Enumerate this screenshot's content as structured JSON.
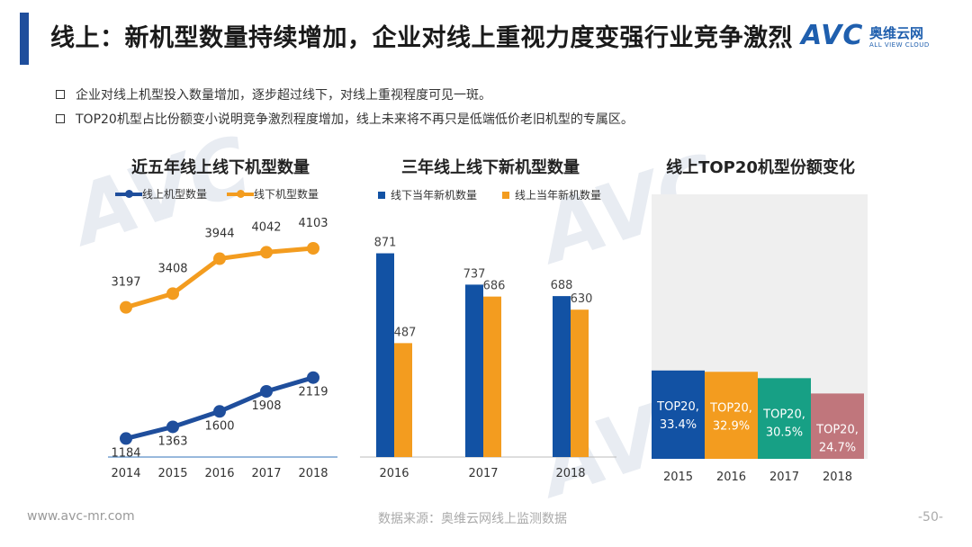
{
  "header": {
    "title": "线上：新机型数量持续增加，企业对线上重视力度变强行业竞争激烈",
    "logo_mark": "AVC",
    "logo_cn": "奥维云网",
    "logo_en": "ALL VIEW CLOUD",
    "accent_color": "#1f4e9c"
  },
  "bullets": [
    "企业对线上机型投入数量增加，逐步超过线下，对线上重视程度可见一斑。",
    "TOP20机型占比份额变小说明竞争激烈程度增加，线上未来将不再只是低端低价老旧机型的专属区。"
  ],
  "chart_data": [
    {
      "type": "line",
      "title": "近五年线上线下机型数量",
      "categories": [
        "2014",
        "2015",
        "2016",
        "2017",
        "2018"
      ],
      "series": [
        {
          "name": "线上机型数量",
          "values": [
            1184,
            1363,
            1600,
            1908,
            2119
          ],
          "color": "#1f4e9c"
        },
        {
          "name": "线下机型数量",
          "values": [
            3197,
            3408,
            3944,
            4042,
            4103
          ],
          "color": "#f39c1f"
        }
      ],
      "ylim": [
        900,
        4600
      ]
    },
    {
      "type": "bar",
      "title": "三年线上线下新机型数量",
      "categories": [
        "2016",
        "2017",
        "2018"
      ],
      "series": [
        {
          "name": "线下当年新机数量",
          "values": [
            871,
            737,
            688
          ],
          "color": "#1252a4"
        },
        {
          "name": "线上当年新机数量",
          "values": [
            487,
            686,
            630
          ],
          "color": "#f39c1f"
        }
      ],
      "ylim": [
        0,
        1000
      ]
    },
    {
      "type": "bar",
      "title": "线上TOP20机型份额变化",
      "categories": [
        "2015",
        "2016",
        "2017",
        "2018"
      ],
      "values": [
        33.4,
        32.9,
        30.5,
        24.7
      ],
      "labels": [
        "TOP20,\n33.4%",
        "TOP20,\n32.9%",
        "TOP20,\n30.5%",
        "TOP20,\n24.7%"
      ],
      "colors": [
        "#1252a4",
        "#f39c1f",
        "#17a085",
        "#c0767c"
      ],
      "background_color": "#efefef",
      "ylim": [
        0,
        100
      ]
    }
  ],
  "footer": {
    "website": "www.avc-mr.com",
    "source": "数据来源：奥维云网线上监测数据",
    "page": "-50-"
  }
}
